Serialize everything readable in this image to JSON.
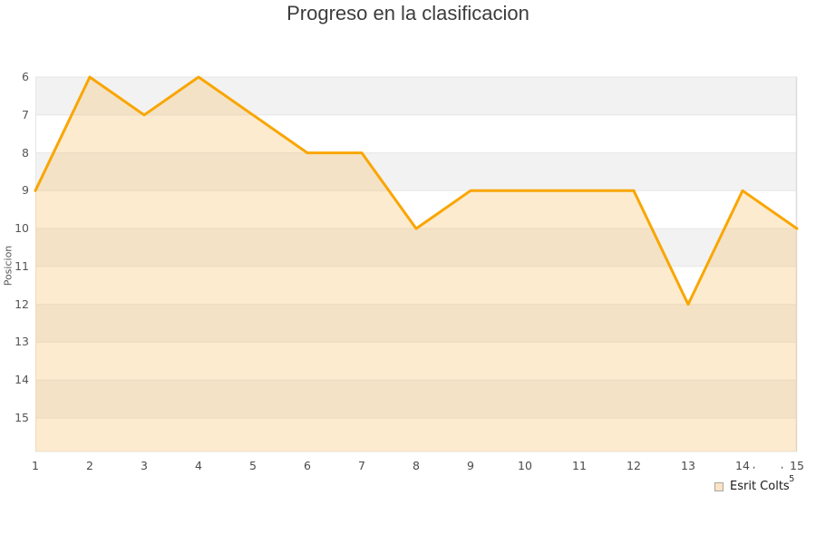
{
  "chart_data": {
    "type": "area",
    "title": "Progreso en la clasificacion",
    "xlabel": "",
    "ylabel": "Posicion",
    "x": [
      1,
      2,
      3,
      4,
      5,
      6,
      7,
      8,
      9,
      10,
      11,
      12,
      13,
      14,
      15
    ],
    "x_ticks": [
      1,
      2,
      3,
      4,
      5,
      6,
      7,
      8,
      9,
      10,
      11,
      12,
      13,
      14,
      15
    ],
    "y_ticks": [
      6,
      7,
      8,
      9,
      10,
      11,
      12,
      13,
      14,
      15
    ],
    "y_axis_inverted_positions": true,
    "ylim_top_value": 6,
    "ylim_bottom_value": 15.9,
    "grid": "horizontal-bands",
    "legend_position": "bottom-right",
    "series": [
      {
        "name": "Esrit Colts",
        "values": [
          9,
          6,
          7,
          6,
          7,
          8,
          8,
          10,
          9,
          9,
          9,
          9,
          12,
          9,
          10
        ]
      }
    ],
    "colors": {
      "line": "#F9A602",
      "area_fill": "rgba(249,198,121,0.35)",
      "band_gray": "#F2F2F2",
      "band_white": "#FFFFFF",
      "gridline": "#E6E6E6",
      "right_border": "#DCDCDC",
      "tick_text": "#555555",
      "title_text": "#3C3C3C",
      "legend_text": "#1A1A1A",
      "legend_swatch_fill": "#FBE3C3",
      "legend_swatch_border": "#A6A6A6"
    }
  },
  "stray_marks": {
    "mark1": "ʼ",
    "mark2": "ʼ",
    "five": "5"
  }
}
